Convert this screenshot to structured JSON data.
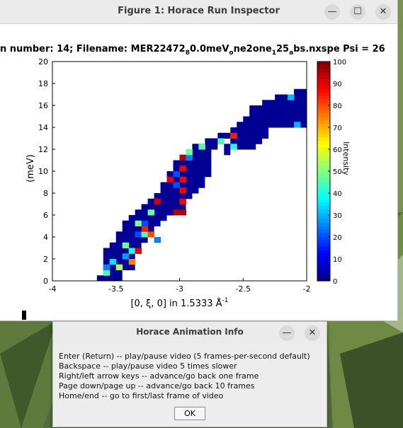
{
  "figure_window": {
    "title": "Figure 1: Horace Run Inspector",
    "plot_title_parts": [
      "n number: 14; Filename: MER22472",
      "8",
      "0.0meV",
      "o",
      "ne2one",
      "1",
      "25",
      "a",
      "bs.nxspe Psi = 26"
    ]
  },
  "dialog": {
    "title": "Horace Animation Info",
    "lines": [
      "Enter (Return) -- play/pause video (5 frames-per-second default)",
      "Backspace -- play/pause video 5 times slower",
      "Right/left arrow keys -- advance/go back one frame",
      "Page down/page up -- advance/go back 10 frames",
      "Home/end -- go to first/last frame of video"
    ],
    "ok_label": "OK"
  },
  "window_controls": {
    "minimize_glyph": "—",
    "maximize_glyph": "☐",
    "close_glyph": "✕"
  },
  "chart_data": {
    "type": "heatmap",
    "xlabel": "[0, ξ, 0] in 1.5333 Å",
    "xlabel_sup": "-1",
    "ylabel": "(meV)",
    "colorbar_label": "Intensity",
    "xlim": [
      -4,
      -2
    ],
    "ylim": [
      0,
      20
    ],
    "clim": [
      0,
      100
    ],
    "colormap": "jet",
    "x_ticks": [
      "-4",
      "-3.5",
      "-3",
      "-2.5",
      "-2"
    ],
    "y_ticks": [
      "0",
      "2",
      "4",
      "6",
      "8",
      "10",
      "12",
      "14",
      "16",
      "18",
      "20"
    ],
    "c_ticks": [
      "0",
      "10",
      "20",
      "30",
      "40",
      "50",
      "60",
      "70",
      "80",
      "90",
      "100"
    ],
    "cell_dx": 0.05,
    "cell_dy": 0.5,
    "background_value": 2,
    "rows": [
      {
        "y": 0.0,
        "x0": -3.65,
        "x1": -3.45
      },
      {
        "y": 0.5,
        "x0": -3.6,
        "x1": -3.45
      },
      {
        "y": 1.0,
        "x0": -3.6,
        "x1": -3.35
      },
      {
        "y": 1.5,
        "x0": -3.6,
        "x1": -3.35
      },
      {
        "y": 2.0,
        "x0": -3.6,
        "x1": -3.35
      },
      {
        "y": 2.5,
        "x0": -3.6,
        "x1": -3.3
      },
      {
        "y": 3.0,
        "x0": -3.55,
        "x1": -3.3
      },
      {
        "y": 3.5,
        "x0": -3.5,
        "x1": -3.25
      },
      {
        "y": 4.0,
        "x0": -3.5,
        "x1": -3.2
      },
      {
        "y": 4.5,
        "x0": -3.45,
        "x1": -3.2
      },
      {
        "y": 5.0,
        "x0": -3.45,
        "x1": -3.15
      },
      {
        "y": 5.5,
        "x0": -3.4,
        "x1": -3.1
      },
      {
        "y": 6.0,
        "x0": -3.35,
        "x1": -3.05
      },
      {
        "y": 6.5,
        "x0": -3.3,
        "x1": -2.95
      },
      {
        "y": 7.0,
        "x0": -3.25,
        "x1": -2.95
      },
      {
        "y": 7.5,
        "x0": -3.2,
        "x1": -2.9
      },
      {
        "y": 8.0,
        "x0": -3.15,
        "x1": -2.85
      },
      {
        "y": 8.5,
        "x0": -3.15,
        "x1": -2.8
      },
      {
        "y": 9.0,
        "x0": -3.1,
        "x1": -2.8
      },
      {
        "y": 9.5,
        "x0": -3.1,
        "x1": -2.75
      },
      {
        "y": 10.0,
        "x0": -3.05,
        "x1": -2.75
      },
      {
        "y": 10.5,
        "x0": -3.05,
        "x1": -2.75
      },
      {
        "y": 11.0,
        "x0": -3.0,
        "x1": -2.75
      },
      {
        "y": 11.5,
        "x0": -2.95,
        "x1": -2.75
      },
      {
        "y": 12.0,
        "x0": -2.9,
        "x1": -2.7
      },
      {
        "y": 12.5,
        "x0": -2.8,
        "x1": -2.65
      },
      {
        "y": 13.0,
        "x0": -2.7,
        "x1": -2.6
      },
      {
        "y": 11.5,
        "x0": -2.65,
        "x1": -2.6
      },
      {
        "y": 12.0,
        "x0": -2.65,
        "x1": -2.4
      },
      {
        "y": 12.5,
        "x0": -2.6,
        "x1": -2.35
      },
      {
        "y": 13.0,
        "x0": -2.6,
        "x1": -2.3
      },
      {
        "y": 13.5,
        "x0": -2.6,
        "x1": -2.3
      },
      {
        "y": 14.0,
        "x0": -2.55,
        "x1": -2.0
      },
      {
        "y": 14.5,
        "x0": -2.5,
        "x1": -2.0
      },
      {
        "y": 15.0,
        "x0": -2.45,
        "x1": -2.0
      },
      {
        "y": 15.5,
        "x0": -2.45,
        "x1": -2.0
      },
      {
        "y": 16.0,
        "x0": -2.35,
        "x1": -2.0
      },
      {
        "y": 16.5,
        "x0": -2.25,
        "x1": -2.0
      },
      {
        "y": 17.0,
        "x0": -2.1,
        "x1": -2.0
      }
    ],
    "hot_cells": [
      {
        "x": -3.6,
        "y": 0.5,
        "v": 45
      },
      {
        "x": -3.6,
        "y": 1.0,
        "v": 25
      },
      {
        "x": -3.55,
        "y": 1.5,
        "v": 35
      },
      {
        "x": -3.5,
        "y": 1.0,
        "v": 55
      },
      {
        "x": -3.45,
        "y": 2.0,
        "v": 28
      },
      {
        "x": -3.4,
        "y": 2.5,
        "v": 40
      },
      {
        "x": -3.4,
        "y": 1.5,
        "v": 75
      },
      {
        "x": -3.35,
        "y": 2.5,
        "v": 90
      },
      {
        "x": -3.45,
        "y": 3.0,
        "v": 48
      },
      {
        "x": -3.35,
        "y": 4.0,
        "v": 20
      },
      {
        "x": -3.3,
        "y": 4.0,
        "v": 45
      },
      {
        "x": -3.25,
        "y": 4.0,
        "v": 80
      },
      {
        "x": -3.2,
        "y": 3.5,
        "v": 25
      },
      {
        "x": -3.3,
        "y": 4.5,
        "v": 85
      },
      {
        "x": -3.35,
        "y": 5.0,
        "v": 50
      },
      {
        "x": -3.3,
        "y": 5.0,
        "v": 20
      },
      {
        "x": -3.25,
        "y": 6.0,
        "v": 48
      },
      {
        "x": -3.2,
        "y": 7.0,
        "v": 92
      },
      {
        "x": -3.05,
        "y": 6.0,
        "v": 95
      },
      {
        "x": -3.0,
        "y": 6.0,
        "v": 95
      },
      {
        "x": -3.0,
        "y": 7.0,
        "v": 88
      },
      {
        "x": -3.0,
        "y": 8.0,
        "v": 88
      },
      {
        "x": -3.0,
        "y": 9.0,
        "v": 88
      },
      {
        "x": -3.0,
        "y": 10.0,
        "v": 88
      },
      {
        "x": -3.05,
        "y": 8.5,
        "v": 20
      },
      {
        "x": -3.05,
        "y": 9.5,
        "v": 20
      },
      {
        "x": -3.1,
        "y": 9.0,
        "v": 90
      },
      {
        "x": -3.0,
        "y": 11.0,
        "v": 95
      },
      {
        "x": -2.95,
        "y": 11.0,
        "v": 25
      },
      {
        "x": -2.95,
        "y": 11.5,
        "v": 48
      },
      {
        "x": -2.85,
        "y": 12.0,
        "v": 45
      },
      {
        "x": -2.7,
        "y": 12.5,
        "v": 45
      },
      {
        "x": -2.6,
        "y": 12.0,
        "v": 40
      },
      {
        "x": -2.6,
        "y": 13.0,
        "v": 85
      },
      {
        "x": -2.15,
        "y": 16.5,
        "v": 30
      },
      {
        "x": -2.1,
        "y": 14.0,
        "v": 30
      }
    ]
  }
}
